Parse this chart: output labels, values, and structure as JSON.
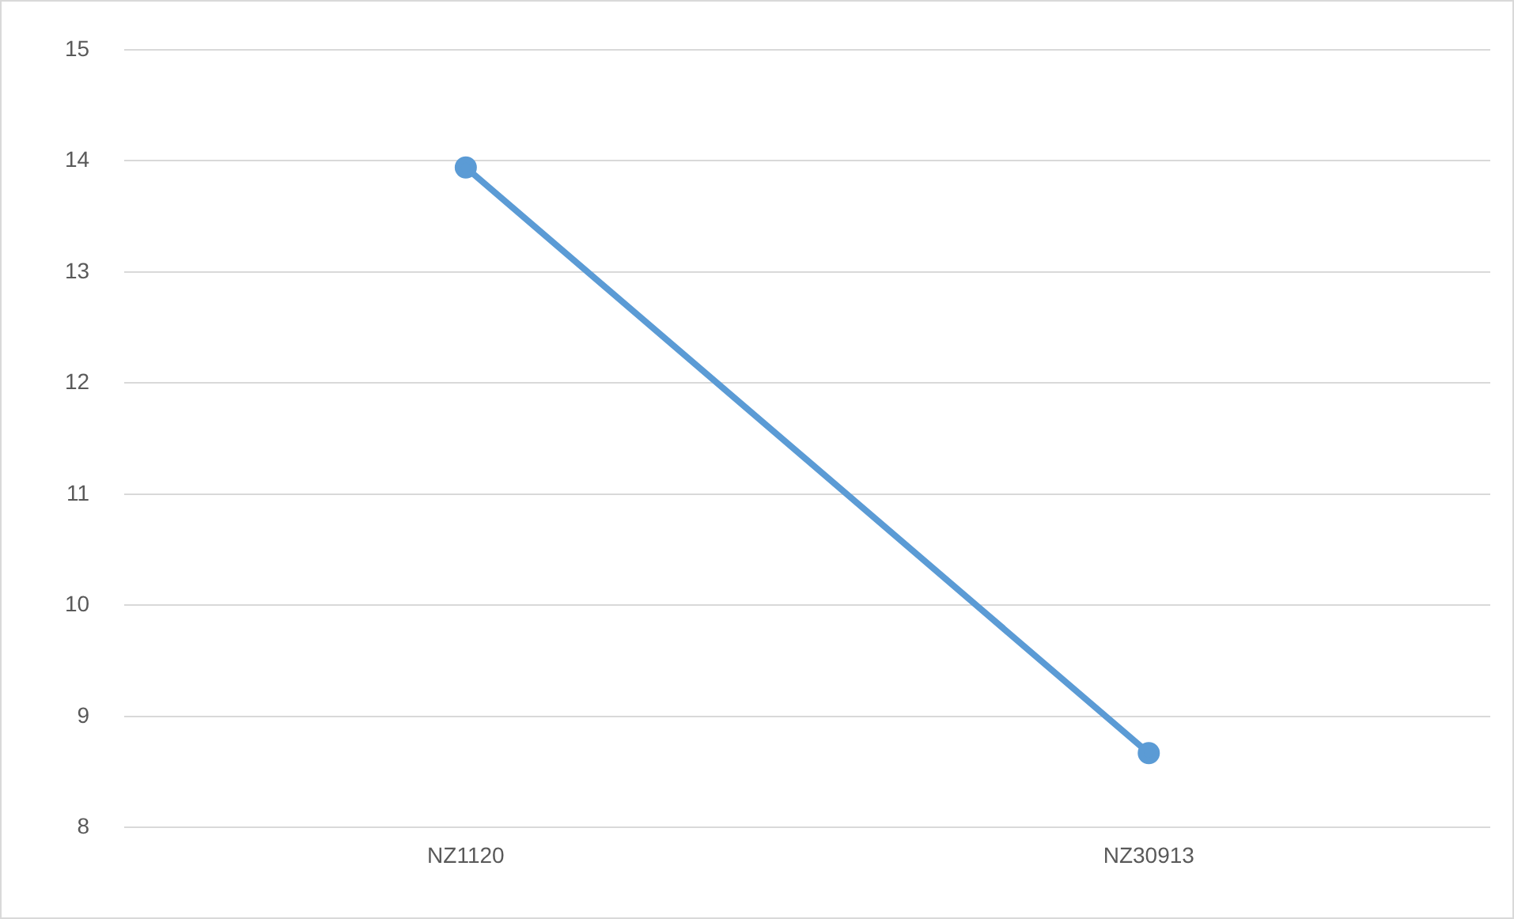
{
  "chart_data": {
    "type": "line",
    "categories": [
      "NZ1120",
      "NZ30913"
    ],
    "series": [
      {
        "color": "#5b9bd5",
        "values": [
          13.94,
          8.67
        ]
      }
    ],
    "ylim": [
      8,
      15
    ],
    "yticks": [
      8,
      9,
      10,
      11,
      12,
      13,
      14,
      15
    ],
    "grid": "y",
    "legend": false,
    "marker": "circle",
    "line_style": "solid"
  }
}
